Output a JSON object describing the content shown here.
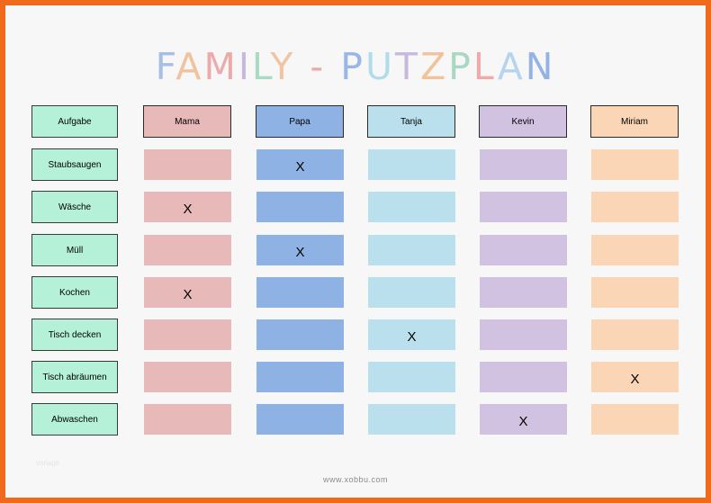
{
  "title": {
    "letters": [
      {
        "char": "F",
        "color": "#a5bfe6"
      },
      {
        "char": "A",
        "color": "#f0c29e"
      },
      {
        "char": "M",
        "color": "#ecabab"
      },
      {
        "char": "I",
        "color": "#c7b9de"
      },
      {
        "char": "L",
        "color": "#aad9c4"
      },
      {
        "char": "Y",
        "color": "#f2c5a2"
      },
      {
        "char": " ",
        "color": "#000000"
      },
      {
        "char": "-",
        "color": "#e9aaa8"
      },
      {
        "char": " ",
        "color": "#000000"
      },
      {
        "char": "P",
        "color": "#98b7e4"
      },
      {
        "char": "U",
        "color": "#b2dcea"
      },
      {
        "char": "T",
        "color": "#c8b8dd"
      },
      {
        "char": "Z",
        "color": "#f2c39a"
      },
      {
        "char": "P",
        "color": "#a8d8c1"
      },
      {
        "char": "L",
        "color": "#eeaba9"
      },
      {
        "char": "A",
        "color": "#b6d4ee"
      },
      {
        "char": "N",
        "color": "#93b3e3"
      }
    ]
  },
  "header": {
    "task_label": "Aufgabe",
    "members": [
      {
        "name": "Mama",
        "color": "#e8b9b9"
      },
      {
        "name": "Papa",
        "color": "#8fb2e5"
      },
      {
        "name": "Tanja",
        "color": "#b9e0ec"
      },
      {
        "name": "Kevin",
        "color": "#d0c2e0"
      },
      {
        "name": "Miriam",
        "color": "#fad6b6"
      }
    ]
  },
  "tasks": [
    {
      "name": "Staubsaugen",
      "marks": [
        "",
        "X",
        "",
        "",
        ""
      ]
    },
    {
      "name": "Wäsche",
      "marks": [
        "X",
        "",
        "",
        "",
        ""
      ]
    },
    {
      "name": "Müll",
      "marks": [
        "",
        "X",
        "",
        "",
        ""
      ]
    },
    {
      "name": "Kochen",
      "marks": [
        "X",
        "",
        "",
        "",
        ""
      ]
    },
    {
      "name": "Tisch decken",
      "marks": [
        "",
        "",
        "X",
        "",
        ""
      ]
    },
    {
      "name": "Tisch abräumen",
      "marks": [
        "",
        "",
        "",
        "",
        "X"
      ]
    },
    {
      "name": "Abwaschen",
      "marks": [
        "",
        "",
        "",
        "X",
        ""
      ]
    }
  ],
  "footer": {
    "url": "www.xobbu.com"
  },
  "watermark": "vorlage"
}
